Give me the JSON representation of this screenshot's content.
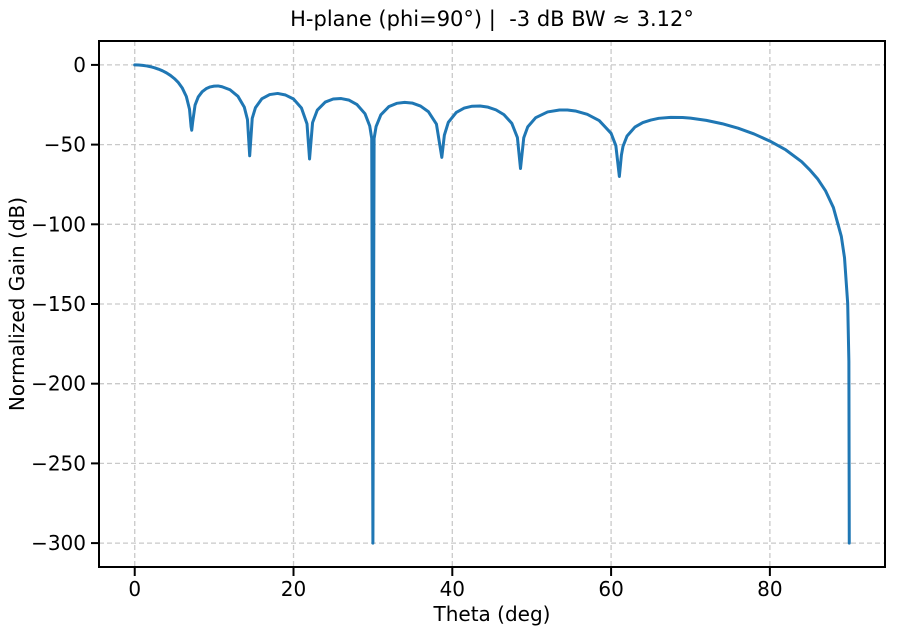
{
  "chart_data": {
    "type": "line",
    "title": "H-plane (phi=90°) |  -3 dB BW ≈ 3.12°",
    "xlabel": "Theta (deg)",
    "ylabel": "Normalized Gain (dB)",
    "xlim": [
      -4.5,
      94.5
    ],
    "ylim": [
      -315,
      15
    ],
    "xticks": [
      0,
      20,
      40,
      60,
      80
    ],
    "yticks": [
      0,
      -50,
      -100,
      -150,
      -200,
      -250,
      -300
    ],
    "grid": true,
    "grid_linestyle": "dashed",
    "grid_color": "#c9c9c9",
    "legend": "none",
    "line_color": "#1f77b4",
    "background_color": "#ffffff",
    "clip_floor_db": -300,
    "beamwidth_3db_deg": 3.12,
    "null_angles_deg": [
      7.18,
      14.48,
      22.02,
      30,
      38.68,
      48.59,
      61.04,
      90
    ],
    "sidelobe_peaks_db": [
      -13.2,
      -17.9,
      -21.1,
      -23.5,
      -25.8,
      -28.3,
      -32.8
    ],
    "series": [
      {
        "name": "H-plane normalized gain",
        "points": [
          [
            0,
            0
          ],
          [
            0.5,
            -0.07
          ],
          [
            1,
            -0.28
          ],
          [
            1.5,
            -0.64
          ],
          [
            2,
            -1.14
          ],
          [
            2.5,
            -1.81
          ],
          [
            3,
            -2.66
          ],
          [
            3.5,
            -3.71
          ],
          [
            4,
            -5.0
          ],
          [
            4.5,
            -6.6
          ],
          [
            5,
            -8.6
          ],
          [
            5.5,
            -11.1
          ],
          [
            6,
            -14.6
          ],
          [
            6.5,
            -19.8
          ],
          [
            6.9,
            -27.8
          ],
          [
            7.1,
            -38.8
          ],
          [
            7.18,
            -41.0
          ],
          [
            7.3,
            -35.8
          ],
          [
            7.6,
            -25.2
          ],
          [
            8,
            -20.1
          ],
          [
            8.5,
            -16.8
          ],
          [
            9,
            -14.9
          ],
          [
            9.5,
            -13.8
          ],
          [
            10,
            -13.3
          ],
          [
            10.5,
            -13.2
          ],
          [
            11,
            -13.7
          ],
          [
            12,
            -15.6
          ],
          [
            13,
            -19.7
          ],
          [
            13.8,
            -26.5
          ],
          [
            14.2,
            -34.3
          ],
          [
            14.48,
            -57.0
          ],
          [
            14.8,
            -33.5
          ],
          [
            15.2,
            -26.9
          ],
          [
            16,
            -21.3
          ],
          [
            17,
            -18.6
          ],
          [
            18,
            -17.9
          ],
          [
            19,
            -18.9
          ],
          [
            20,
            -21.4
          ],
          [
            21,
            -27.0
          ],
          [
            21.7,
            -37.0
          ],
          [
            22.02,
            -59.0
          ],
          [
            22.4,
            -36.2
          ],
          [
            23,
            -28.3
          ],
          [
            24,
            -23.3
          ],
          [
            25,
            -21.4
          ],
          [
            26,
            -21.1
          ],
          [
            27,
            -22.1
          ],
          [
            28,
            -24.9
          ],
          [
            29,
            -30.6
          ],
          [
            29.6,
            -38.3
          ],
          [
            29.85,
            -46.1
          ],
          [
            30,
            -300
          ],
          [
            30.15,
            -46.2
          ],
          [
            30.4,
            -38.7
          ],
          [
            31,
            -31.3
          ],
          [
            32,
            -26.2
          ],
          [
            33,
            -24.1
          ],
          [
            34,
            -23.5
          ],
          [
            35,
            -24.0
          ],
          [
            36,
            -25.8
          ],
          [
            37,
            -29.4
          ],
          [
            38,
            -37.1
          ],
          [
            38.68,
            -58.0
          ],
          [
            39,
            -44.1
          ],
          [
            39.5,
            -36.0
          ],
          [
            40.5,
            -29.8
          ],
          [
            41.5,
            -27.1
          ],
          [
            42.5,
            -25.9
          ],
          [
            43.5,
            -25.8
          ],
          [
            44.5,
            -26.5
          ],
          [
            45.5,
            -28.2
          ],
          [
            46.5,
            -31.2
          ],
          [
            47.5,
            -36.7
          ],
          [
            48.2,
            -45.6
          ],
          [
            48.59,
            -65.0
          ],
          [
            49,
            -45.7
          ],
          [
            49.5,
            -38.9
          ],
          [
            50.5,
            -33.1
          ],
          [
            52,
            -29.5
          ],
          [
            53.5,
            -28.3
          ],
          [
            54.5,
            -28.3
          ],
          [
            55.5,
            -28.9
          ],
          [
            57,
            -31.0
          ],
          [
            58.5,
            -34.9
          ],
          [
            60,
            -42.9
          ],
          [
            60.6,
            -50.7
          ],
          [
            61.04,
            -70.0
          ],
          [
            61.3,
            -56.6
          ],
          [
            61.5,
            -51.1
          ],
          [
            62,
            -44.7
          ],
          [
            63,
            -39.0
          ],
          [
            64,
            -36.2
          ],
          [
            65,
            -34.6
          ],
          [
            66,
            -33.5
          ],
          [
            67.5,
            -32.9
          ],
          [
            69,
            -33.0
          ],
          [
            70,
            -33.4
          ],
          [
            72,
            -34.8
          ],
          [
            74,
            -36.9
          ],
          [
            76,
            -39.7
          ],
          [
            78,
            -43.3
          ],
          [
            80,
            -47.8
          ],
          [
            82,
            -53.3
          ],
          [
            84,
            -60.7
          ],
          [
            85,
            -65.7
          ],
          [
            86,
            -71.4
          ],
          [
            87,
            -78.9
          ],
          [
            88,
            -89.5
          ],
          [
            89,
            -107.6
          ],
          [
            89.4,
            -121
          ],
          [
            89.8,
            -149.5
          ],
          [
            89.95,
            -186
          ],
          [
            90,
            -300
          ]
        ]
      }
    ]
  }
}
